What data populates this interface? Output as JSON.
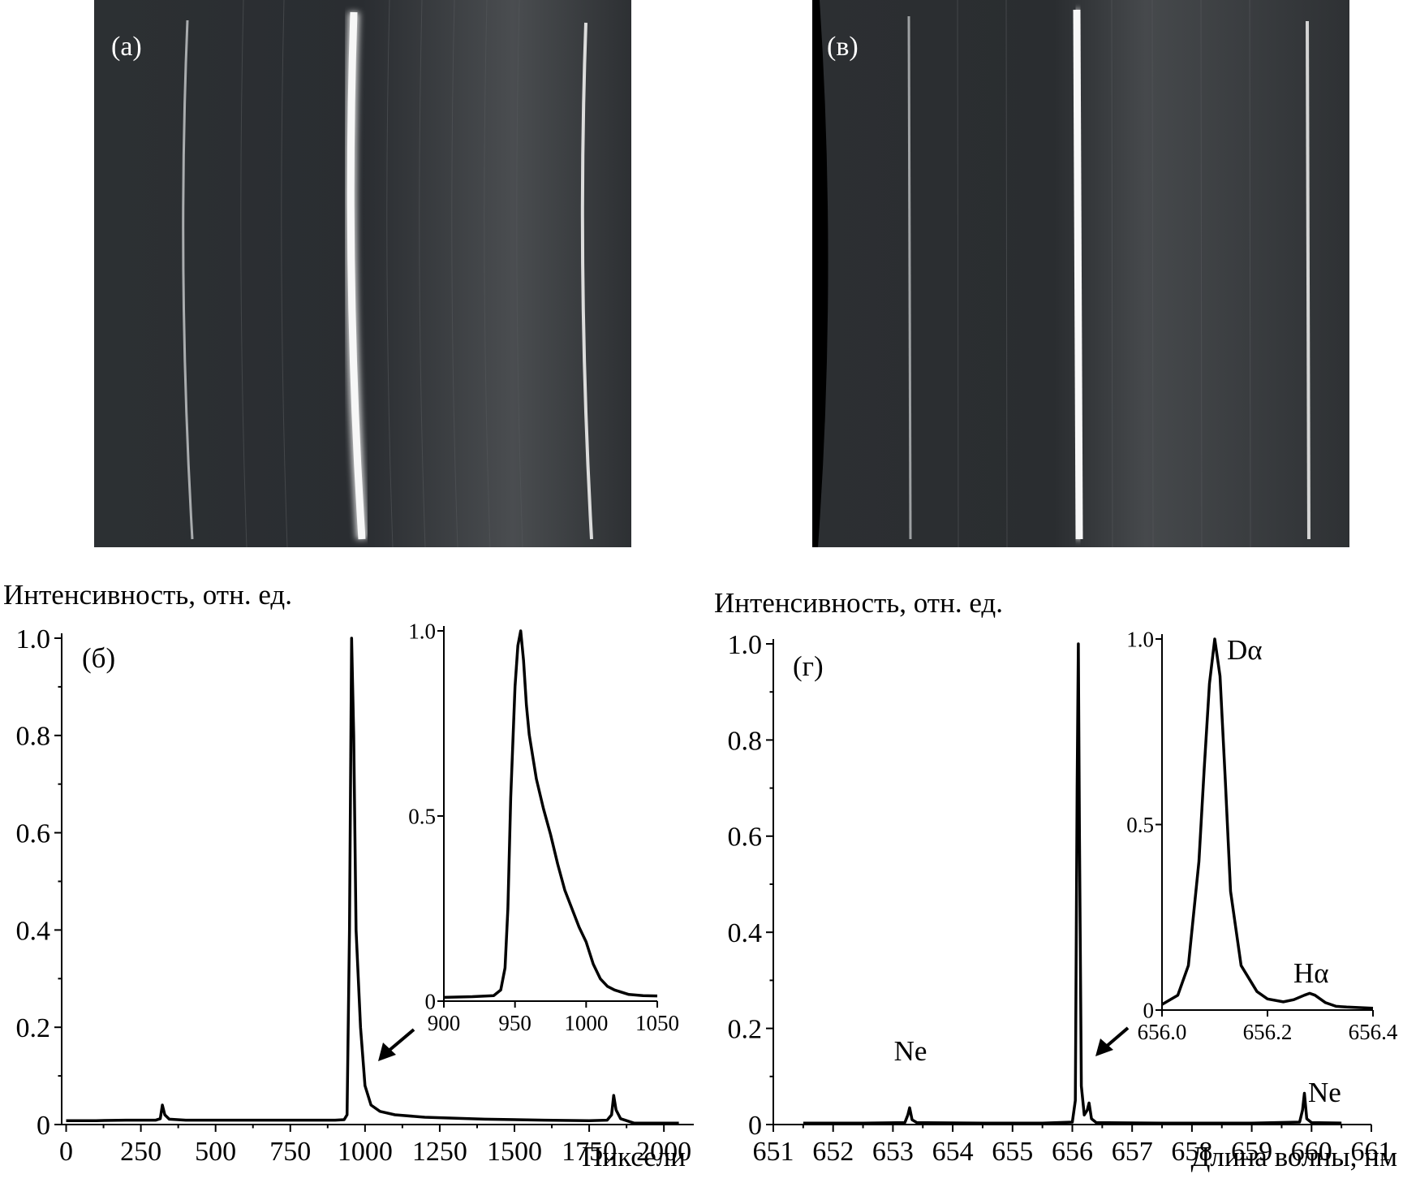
{
  "panels": {
    "a": {
      "label": "(а)"
    },
    "b": {
      "label": "(б)"
    },
    "v": {
      "label": "(в)"
    },
    "g": {
      "label": "(г)"
    }
  },
  "left_chart": {
    "ylabel": "Интенсивность, отн. ед.",
    "xlabel": "Пиксели"
  },
  "right_chart": {
    "ylabel": "Интенсивность, отн. ед.",
    "xlabel": "Длина волны, нм",
    "annotations": {
      "ne1": "Ne",
      "ne2": "Ne",
      "d_alpha": "Dα",
      "h_alpha": "Hα"
    }
  },
  "colors": {
    "line": "#000000",
    "image_bg": "#2a2d30",
    "image_line": "#f2f2f2"
  },
  "chart_data": [
    {
      "id": "b-main",
      "type": "line",
      "xlabel": "Пиксели",
      "ylabel": "Интенсивность, отн. ед.",
      "xlim": [
        -15,
        2100
      ],
      "ylim": [
        0,
        1.0
      ],
      "xticks": [
        0,
        250,
        500,
        750,
        1000,
        1250,
        1500,
        1750,
        2000
      ],
      "xtick_labels": [
        "0",
        "250",
        "500",
        "750",
        "1000",
        "1250",
        "1500",
        "1750",
        "2000"
      ],
      "yticks": [
        0,
        0.2,
        0.4,
        0.6,
        0.8,
        1.0
      ],
      "ytick_labels": [
        "0",
        "0.2",
        "0.4",
        "0.6",
        "0.8",
        "1.0"
      ],
      "x": [
        0,
        100,
        200,
        300,
        315,
        322,
        330,
        345,
        400,
        600,
        800,
        900,
        930,
        940,
        948,
        955,
        962,
        970,
        985,
        1000,
        1020,
        1050,
        1100,
        1200,
        1400,
        1600,
        1750,
        1810,
        1825,
        1832,
        1840,
        1855,
        1900,
        2000,
        2050
      ],
      "y": [
        0.008,
        0.008,
        0.009,
        0.009,
        0.012,
        0.04,
        0.02,
        0.011,
        0.009,
        0.009,
        0.009,
        0.009,
        0.01,
        0.02,
        0.4,
        1.0,
        0.8,
        0.4,
        0.2,
        0.08,
        0.04,
        0.027,
        0.02,
        0.015,
        0.011,
        0.009,
        0.008,
        0.009,
        0.02,
        0.06,
        0.03,
        0.012,
        0.003,
        0.003,
        0.003
      ]
    },
    {
      "id": "b-inset",
      "type": "line",
      "xlim": [
        900,
        1050
      ],
      "ylim": [
        0,
        1.0
      ],
      "xticks": [
        900,
        950,
        1000,
        1050
      ],
      "xtick_labels": [
        "900",
        "950",
        "1000",
        "1050"
      ],
      "yticks": [
        0,
        0.5,
        1.0
      ],
      "ytick_labels": [
        "0",
        "0.5",
        "1.0"
      ],
      "x": [
        900,
        920,
        935,
        940,
        943,
        945,
        947,
        950,
        952,
        954,
        956,
        958,
        960,
        965,
        970,
        975,
        980,
        985,
        990,
        995,
        1000,
        1005,
        1010,
        1015,
        1020,
        1030,
        1040,
        1050
      ],
      "y": [
        0.01,
        0.012,
        0.015,
        0.03,
        0.09,
        0.25,
        0.55,
        0.85,
        0.96,
        1.0,
        0.92,
        0.8,
        0.72,
        0.6,
        0.52,
        0.45,
        0.37,
        0.3,
        0.25,
        0.2,
        0.16,
        0.1,
        0.06,
        0.04,
        0.03,
        0.018,
        0.015,
        0.014
      ]
    },
    {
      "id": "g-main",
      "type": "line",
      "xlabel": "Длина волны, нм",
      "ylabel": "Интенсивность, отн. ед.",
      "xlim": [
        651,
        661
      ],
      "ylim": [
        0,
        1.0
      ],
      "xticks": [
        651,
        652,
        653,
        654,
        655,
        656,
        657,
        658,
        659,
        660,
        661
      ],
      "xtick_labels": [
        "651",
        "652",
        "653",
        "654",
        "655",
        "656",
        "657",
        "658",
        "659",
        "660",
        "661"
      ],
      "yticks": [
        0,
        0.2,
        0.4,
        0.6,
        0.8,
        1.0
      ],
      "ytick_labels": [
        "0",
        "0.2",
        "0.4",
        "0.6",
        "0.8",
        "1.0"
      ],
      "x": [
        651.5,
        652.5,
        653.2,
        653.25,
        653.28,
        653.32,
        653.4,
        654.5,
        655.5,
        656.0,
        656.05,
        656.08,
        656.1,
        656.12,
        656.15,
        656.2,
        656.25,
        656.28,
        656.32,
        656.4,
        657.5,
        659.0,
        659.8,
        659.85,
        659.88,
        659.92,
        660.0,
        660.5
      ],
      "y": [
        0.003,
        0.003,
        0.004,
        0.02,
        0.035,
        0.01,
        0.004,
        0.003,
        0.003,
        0.005,
        0.05,
        0.7,
        1.0,
        0.6,
        0.08,
        0.02,
        0.03,
        0.045,
        0.012,
        0.004,
        0.003,
        0.003,
        0.005,
        0.03,
        0.065,
        0.012,
        0.004,
        0.003
      ],
      "annotations": [
        "Ne",
        "Ne"
      ]
    },
    {
      "id": "g-inset",
      "type": "line",
      "xlim": [
        656.0,
        656.4
      ],
      "ylim": [
        0,
        1.0
      ],
      "xticks": [
        656.0,
        656.2,
        656.4
      ],
      "xtick_labels": [
        "656.0",
        "656.2",
        "656.4"
      ],
      "yticks": [
        0,
        0.5,
        1.0
      ],
      "ytick_labels": [
        "0",
        "0.5",
        "1.0"
      ],
      "x": [
        656.0,
        656.03,
        656.05,
        656.07,
        656.08,
        656.09,
        656.1,
        656.11,
        656.12,
        656.13,
        656.15,
        656.18,
        656.2,
        656.23,
        656.25,
        656.27,
        656.28,
        656.29,
        656.31,
        656.33,
        656.35,
        656.4
      ],
      "y": [
        0.015,
        0.04,
        0.12,
        0.4,
        0.65,
        0.88,
        1.0,
        0.9,
        0.62,
        0.32,
        0.12,
        0.05,
        0.03,
        0.022,
        0.028,
        0.04,
        0.045,
        0.04,
        0.02,
        0.01,
        0.008,
        0.005
      ],
      "annotations": [
        "Dα",
        "Hα"
      ]
    }
  ]
}
